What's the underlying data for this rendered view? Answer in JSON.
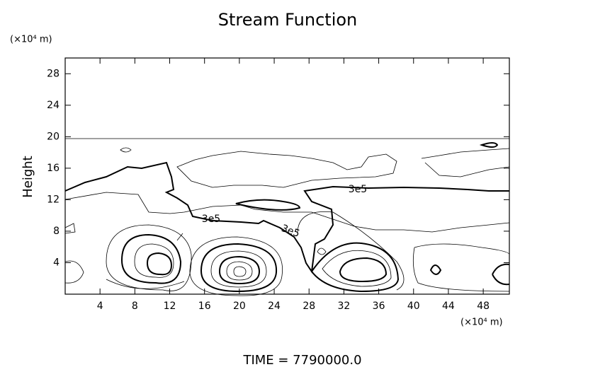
{
  "chart_data": {
    "type": "contour",
    "title": "Stream Function",
    "ylabel": "Height",
    "y_unit": "(×10⁴ m)",
    "x_unit": "(×10⁴ m)",
    "xlim": [
      0,
      51
    ],
    "ylim": [
      0,
      30
    ],
    "xticks": [
      4,
      8,
      12,
      16,
      20,
      24,
      28,
      32,
      36,
      40,
      44,
      48
    ],
    "yticks": [
      4,
      8,
      12,
      16,
      20,
      24,
      28
    ],
    "contour_labels": [
      "3e5",
      "3e5",
      "3e5"
    ],
    "footer": "TIME = 7790000.0"
  }
}
